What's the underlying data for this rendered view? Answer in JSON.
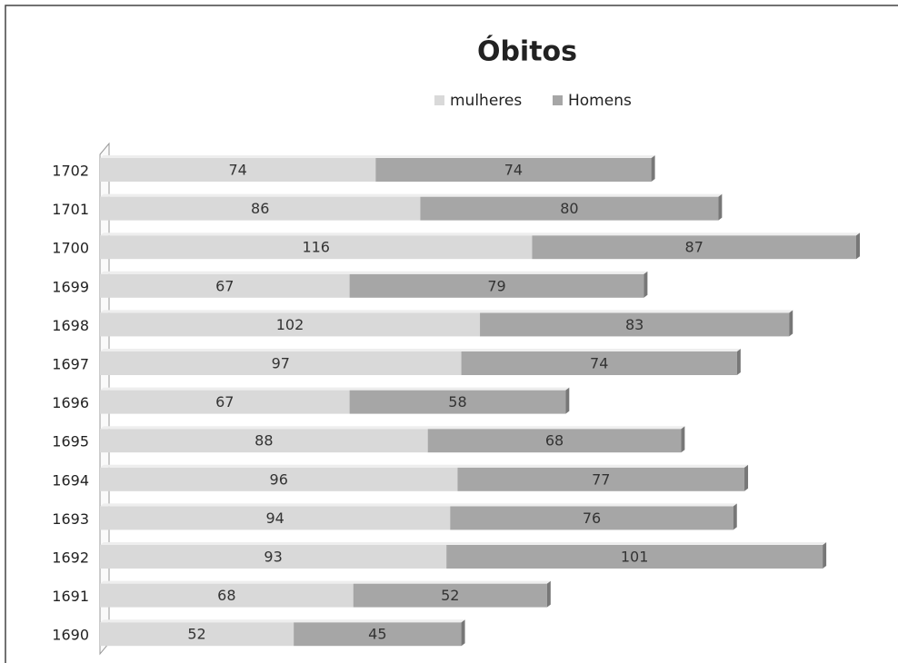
{
  "chart_data": {
    "type": "stacked-bar-horizontal",
    "title": "Óbitos",
    "categories": [
      "1702",
      "1701",
      "1700",
      "1699",
      "1698",
      "1697",
      "1696",
      "1695",
      "1694",
      "1693",
      "1692",
      "1691",
      "1690"
    ],
    "series": [
      {
        "name": "mulheres",
        "color": "#d9d9d9",
        "values": [
          74,
          86,
          116,
          67,
          102,
          97,
          67,
          88,
          96,
          94,
          93,
          68,
          52
        ]
      },
      {
        "name": "Homens",
        "color": "#a6a6a6",
        "values": [
          74,
          80,
          87,
          79,
          83,
          74,
          58,
          68,
          77,
          76,
          101,
          52,
          45
        ]
      }
    ],
    "data_labels": true,
    "legend": "top"
  }
}
